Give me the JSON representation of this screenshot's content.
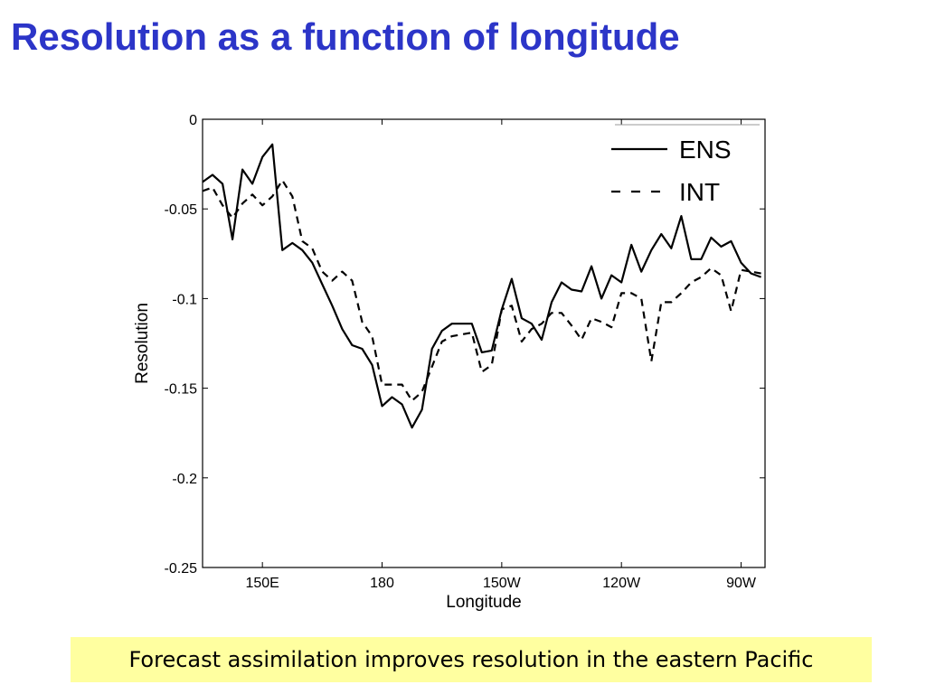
{
  "slide": {
    "title": "Resolution as a function of longitude",
    "caption": "Forecast assimilation improves resolution in the eastern Pacific",
    "title_color": "#2c35c8",
    "caption_background": "#ffffa0"
  },
  "chart_data": {
    "type": "line",
    "title": "",
    "xlabel": "Longitude",
    "ylabel": "Resolution",
    "xlim": [
      135,
      276
    ],
    "ylim": [
      -0.25,
      0
    ],
    "grid": false,
    "legend_position": "top-right",
    "x_ticks": [
      {
        "value": 150,
        "label": "150E"
      },
      {
        "value": 180,
        "label": "180"
      },
      {
        "value": 210,
        "label": "150W"
      },
      {
        "value": 240,
        "label": "120W"
      },
      {
        "value": 270,
        "label": "90W"
      }
    ],
    "y_ticks": [
      {
        "value": 0,
        "label": "0"
      },
      {
        "value": -0.05,
        "label": "-0.05"
      },
      {
        "value": -0.1,
        "label": "-0.1"
      },
      {
        "value": -0.15,
        "label": "-0.15"
      },
      {
        "value": -0.2,
        "label": "-0.2"
      },
      {
        "value": -0.25,
        "label": "-0.25"
      }
    ],
    "x": [
      135,
      137.5,
      140,
      142.5,
      145,
      147.5,
      150,
      152.5,
      155,
      157.5,
      160,
      162.5,
      165,
      167.5,
      170,
      172.5,
      175,
      177.5,
      180,
      182.5,
      185,
      187.5,
      190,
      192.5,
      195,
      197.5,
      200,
      202.5,
      205,
      207.5,
      210,
      212.5,
      215,
      217.5,
      220,
      222.5,
      225,
      227.5,
      230,
      232.5,
      235,
      237.5,
      240,
      242.5,
      245,
      247.5,
      250,
      252.5,
      255,
      257.5,
      260,
      262.5,
      265,
      267.5,
      270,
      272.5,
      275
    ],
    "series": [
      {
        "name": "ENS",
        "style": "solid",
        "color": "#000000",
        "values": [
          -0.035,
          -0.031,
          -0.036,
          -0.067,
          -0.028,
          -0.036,
          -0.021,
          -0.014,
          -0.073,
          -0.069,
          -0.073,
          -0.08,
          -0.092,
          -0.104,
          -0.117,
          -0.126,
          -0.128,
          -0.137,
          -0.16,
          -0.155,
          -0.159,
          -0.172,
          -0.162,
          -0.128,
          -0.118,
          -0.114,
          -0.114,
          -0.114,
          -0.13,
          -0.129,
          -0.106,
          -0.089,
          -0.111,
          -0.114,
          -0.123,
          -0.102,
          -0.091,
          -0.095,
          -0.096,
          -0.082,
          -0.1,
          -0.087,
          -0.091,
          -0.07,
          -0.085,
          -0.073,
          -0.064,
          -0.072,
          -0.054,
          -0.078,
          -0.078,
          -0.066,
          -0.071,
          -0.068,
          -0.08,
          -0.086,
          -0.088
        ]
      },
      {
        "name": "INT",
        "style": "dashed",
        "color": "#000000",
        "values": [
          -0.04,
          -0.038,
          -0.048,
          -0.055,
          -0.047,
          -0.042,
          -0.048,
          -0.043,
          -0.034,
          -0.043,
          -0.068,
          -0.072,
          -0.085,
          -0.09,
          -0.085,
          -0.09,
          -0.113,
          -0.121,
          -0.148,
          -0.148,
          -0.148,
          -0.157,
          -0.152,
          -0.138,
          -0.124,
          -0.121,
          -0.12,
          -0.119,
          -0.141,
          -0.137,
          -0.106,
          -0.104,
          -0.124,
          -0.117,
          -0.114,
          -0.108,
          -0.108,
          -0.115,
          -0.123,
          -0.111,
          -0.113,
          -0.116,
          -0.097,
          -0.097,
          -0.1,
          -0.135,
          -0.102,
          -0.102,
          -0.097,
          -0.091,
          -0.088,
          -0.083,
          -0.087,
          -0.107,
          -0.084,
          -0.085,
          -0.086
        ]
      }
    ]
  }
}
